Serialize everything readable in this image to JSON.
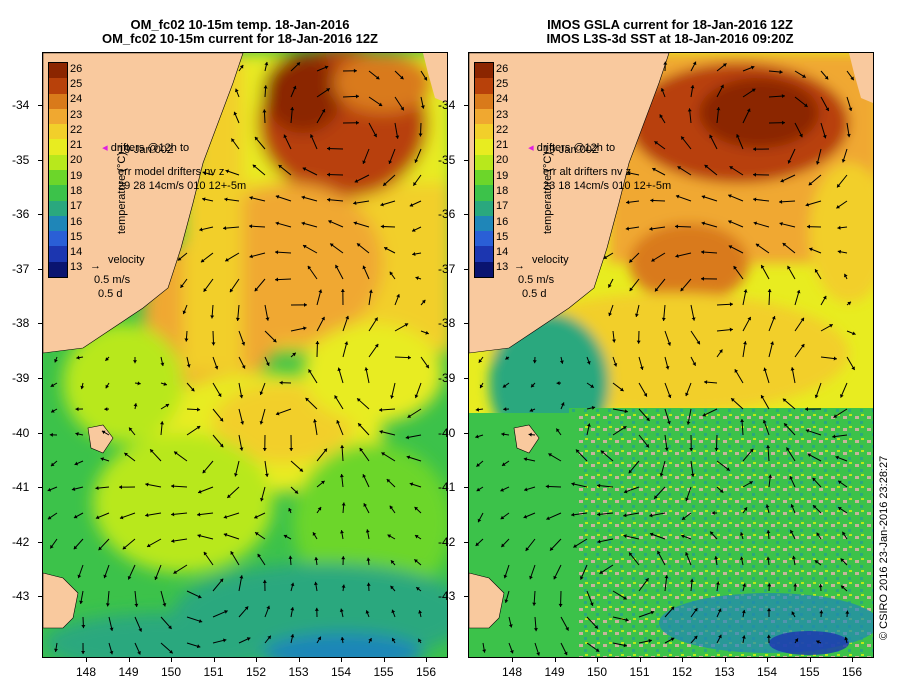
{
  "left_panel": {
    "title_line1": "OM_fc02 10-15m temp. 18-Jan-2016",
    "title_line2": "OM_fc02 10-15m current for 18-Jan-2016 12Z",
    "drifters_label": "drifters @12h to",
    "drifters_date": "19-Jan 00Z",
    "err_label": "err model drifters nv z",
    "err_values": "29 28 14cm/s 010 12+-5m",
    "velocity_label": "velocity",
    "velocity_speed": "0.5 m/s",
    "velocity_duration": "0.5 d"
  },
  "right_panel": {
    "title_line1": "IMOS GSLA current for 18-Jan-2016 12Z",
    "title_line2": "IMOS L3S-3d SST at 18-Jan-2016 09:20Z",
    "drifters_label": "drifters @12h to",
    "drifters_date": "19-Jan 00Z",
    "err_label": "err alt drifters nv z",
    "err_values": "23 18 14cm/s 010 12+-5m",
    "velocity_label": "velocity",
    "velocity_speed": "0.5 m/s",
    "velocity_duration": "0.5 d"
  },
  "colorbar": {
    "title": "temperature (°C)",
    "ticks": [
      "26",
      "25",
      "24",
      "23",
      "22",
      "21",
      "20",
      "19",
      "18",
      "17",
      "16",
      "15",
      "14",
      "13"
    ],
    "colors": [
      "#8b2500",
      "#b8410a",
      "#d97a1a",
      "#f0a830",
      "#f2cf2a",
      "#e8ec20",
      "#b8e81c",
      "#6cd62a",
      "#3cc24a",
      "#2aa87e",
      "#1f86b8",
      "#2a5fd6",
      "#1c36b0",
      "#0a1470"
    ]
  },
  "axes": {
    "lat_ticks": [
      "-34",
      "-35",
      "-36",
      "-37",
      "-38",
      "-39",
      "-40",
      "-41",
      "-42",
      "-43"
    ],
    "lon_ticks": [
      "148",
      "149",
      "150",
      "151",
      "152",
      "153",
      "154",
      "155",
      "156"
    ]
  },
  "copyright": "© CSIRO 2016   23-Jan-2016 23:28:27",
  "colors": {
    "land": "#f9c99e",
    "land_sat_missing": "#c8b39c"
  }
}
